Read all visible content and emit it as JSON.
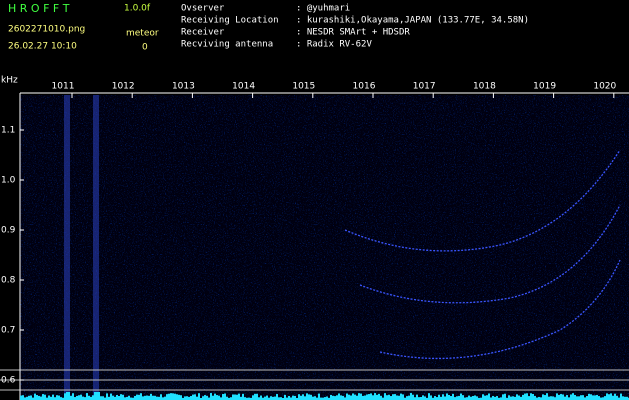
{
  "header": {
    "app_name": "H R O F F T",
    "version": "1.0.0f",
    "filename": "2602271010.png",
    "datetime": "26.02.27 10:10",
    "meteor_label": "meteor",
    "meteor_count": "0"
  },
  "info": [
    [
      "Ovserver",
      ": @yuhmari"
    ],
    [
      "Receiving Location",
      ": kurashiki,Okayama,JAPAN (133.77E, 34.58N)"
    ],
    [
      "Receiver",
      ": NESDR SMArt + HDSDR"
    ],
    [
      "Recviving antenna",
      ": Radix RV-62V"
    ]
  ],
  "axes": {
    "unit": "kHz",
    "x_labels": [
      "1011",
      "1012",
      "1013",
      "1014",
      "1015",
      "1016",
      "1017",
      "1018",
      "1019",
      "1020"
    ],
    "y_labels": [
      "1.1",
      "1.0",
      "0.9",
      "0.8",
      "0.7",
      "0.6"
    ]
  }
}
